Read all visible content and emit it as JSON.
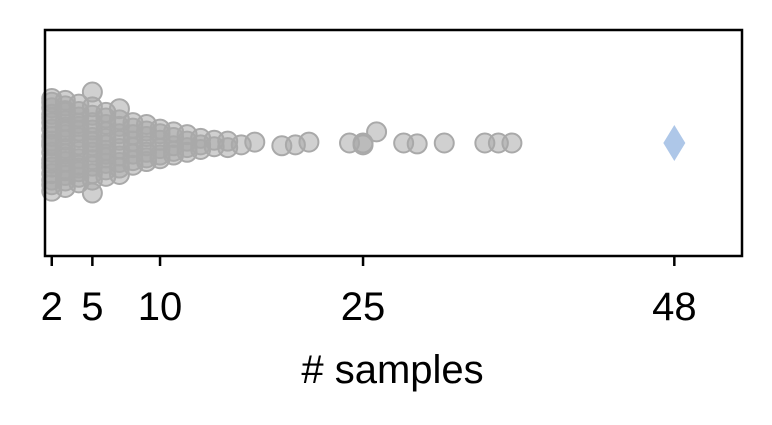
{
  "chart_data": {
    "type": "scatter",
    "title": "",
    "xlabel": "# samples",
    "ylabel": "",
    "xlim": [
      1.5,
      53
    ],
    "x_ticks": [
      2,
      5,
      10,
      25,
      48
    ],
    "x_tick_labels": [
      "2",
      "5",
      "10",
      "25",
      "48"
    ],
    "y_ticks": [],
    "grid": false,
    "colors": {
      "points": "#a9a9a9",
      "highlight": "#aec7e8",
      "frame": "#000000"
    },
    "series": [
      {
        "marker": "circle",
        "x": [
          2,
          2,
          2,
          2,
          2,
          2,
          2,
          2,
          2,
          2,
          2,
          2,
          2,
          2,
          2,
          2,
          2,
          2,
          2,
          3,
          3,
          3,
          3,
          3,
          3,
          3,
          3,
          3,
          3,
          3,
          3,
          3,
          3,
          3,
          3,
          3,
          3,
          4,
          4,
          4,
          4,
          4,
          4,
          4,
          4,
          4,
          4,
          4,
          4,
          4,
          4,
          4,
          5,
          5,
          5,
          5,
          5,
          5,
          5,
          5,
          5,
          5,
          5,
          5,
          5,
          5,
          6,
          6,
          6,
          6,
          6,
          6,
          6,
          6,
          6,
          6,
          6,
          6,
          7,
          7,
          7,
          7,
          7,
          7,
          7,
          7,
          7,
          7,
          8,
          8,
          8,
          8,
          8,
          8,
          8,
          8,
          9,
          9,
          9,
          9,
          9,
          9,
          9,
          10,
          10,
          10,
          10,
          10,
          10,
          11,
          11,
          11,
          11,
          11,
          12,
          12,
          12,
          12,
          13,
          13,
          13,
          14,
          14,
          15,
          15,
          16,
          17,
          19,
          20,
          21,
          24,
          25,
          25,
          26,
          28,
          29,
          31,
          34,
          35,
          36
        ],
        "y": [
          0.52,
          -0.48,
          0.45,
          -0.44,
          0.4,
          -0.38,
          0.33,
          -0.31,
          0.26,
          -0.22,
          0.18,
          -0.15,
          0.1,
          -0.07,
          0.03,
          0.01,
          -0.02,
          0.22,
          -0.27,
          0.48,
          -0.46,
          0.41,
          -0.4,
          0.35,
          -0.33,
          0.28,
          -0.24,
          0.2,
          -0.17,
          0.12,
          -0.09,
          0.06,
          -0.03,
          0.3,
          -0.35,
          0.15,
          -0.12,
          0.43,
          -0.42,
          0.37,
          -0.34,
          0.31,
          -0.28,
          0.24,
          -0.21,
          0.17,
          -0.13,
          0.09,
          -0.06,
          0.02,
          -0.18,
          0.27,
          0.54,
          -0.55,
          0.4,
          -0.39,
          0.33,
          -0.3,
          0.25,
          -0.22,
          0.18,
          -0.14,
          0.1,
          -0.06,
          0.03,
          -0.01,
          0.36,
          -0.33,
          0.29,
          -0.27,
          0.22,
          -0.2,
          0.16,
          -0.12,
          0.08,
          -0.05,
          0.02,
          0.12,
          0.34,
          -0.37,
          0.27,
          -0.25,
          0.21,
          -0.18,
          0.14,
          -0.1,
          0.06,
          -0.03,
          0.24,
          -0.22,
          0.19,
          -0.16,
          0.12,
          -0.09,
          0.05,
          -0.02,
          0.2,
          -0.2,
          0.16,
          -0.13,
          0.1,
          -0.07,
          0.03,
          0.17,
          -0.15,
          0.13,
          -0.1,
          0.06,
          -0.03,
          0.13,
          -0.12,
          0.09,
          -0.06,
          0.03,
          0.1,
          -0.09,
          0.05,
          -0.02,
          0.07,
          -0.05,
          0.02,
          0.04,
          -0.03,
          0.05,
          -0.02,
          0.02,
          -0.01,
          0.03,
          0.02,
          -0.01,
          0.0,
          0.02,
          0.0,
          -0.12,
          0.0,
          0.01,
          0.0,
          0.0,
          0.0,
          0.0
        ]
      },
      {
        "marker": "diamond",
        "x": [
          48
        ],
        "y": [
          0.0
        ]
      }
    ]
  }
}
